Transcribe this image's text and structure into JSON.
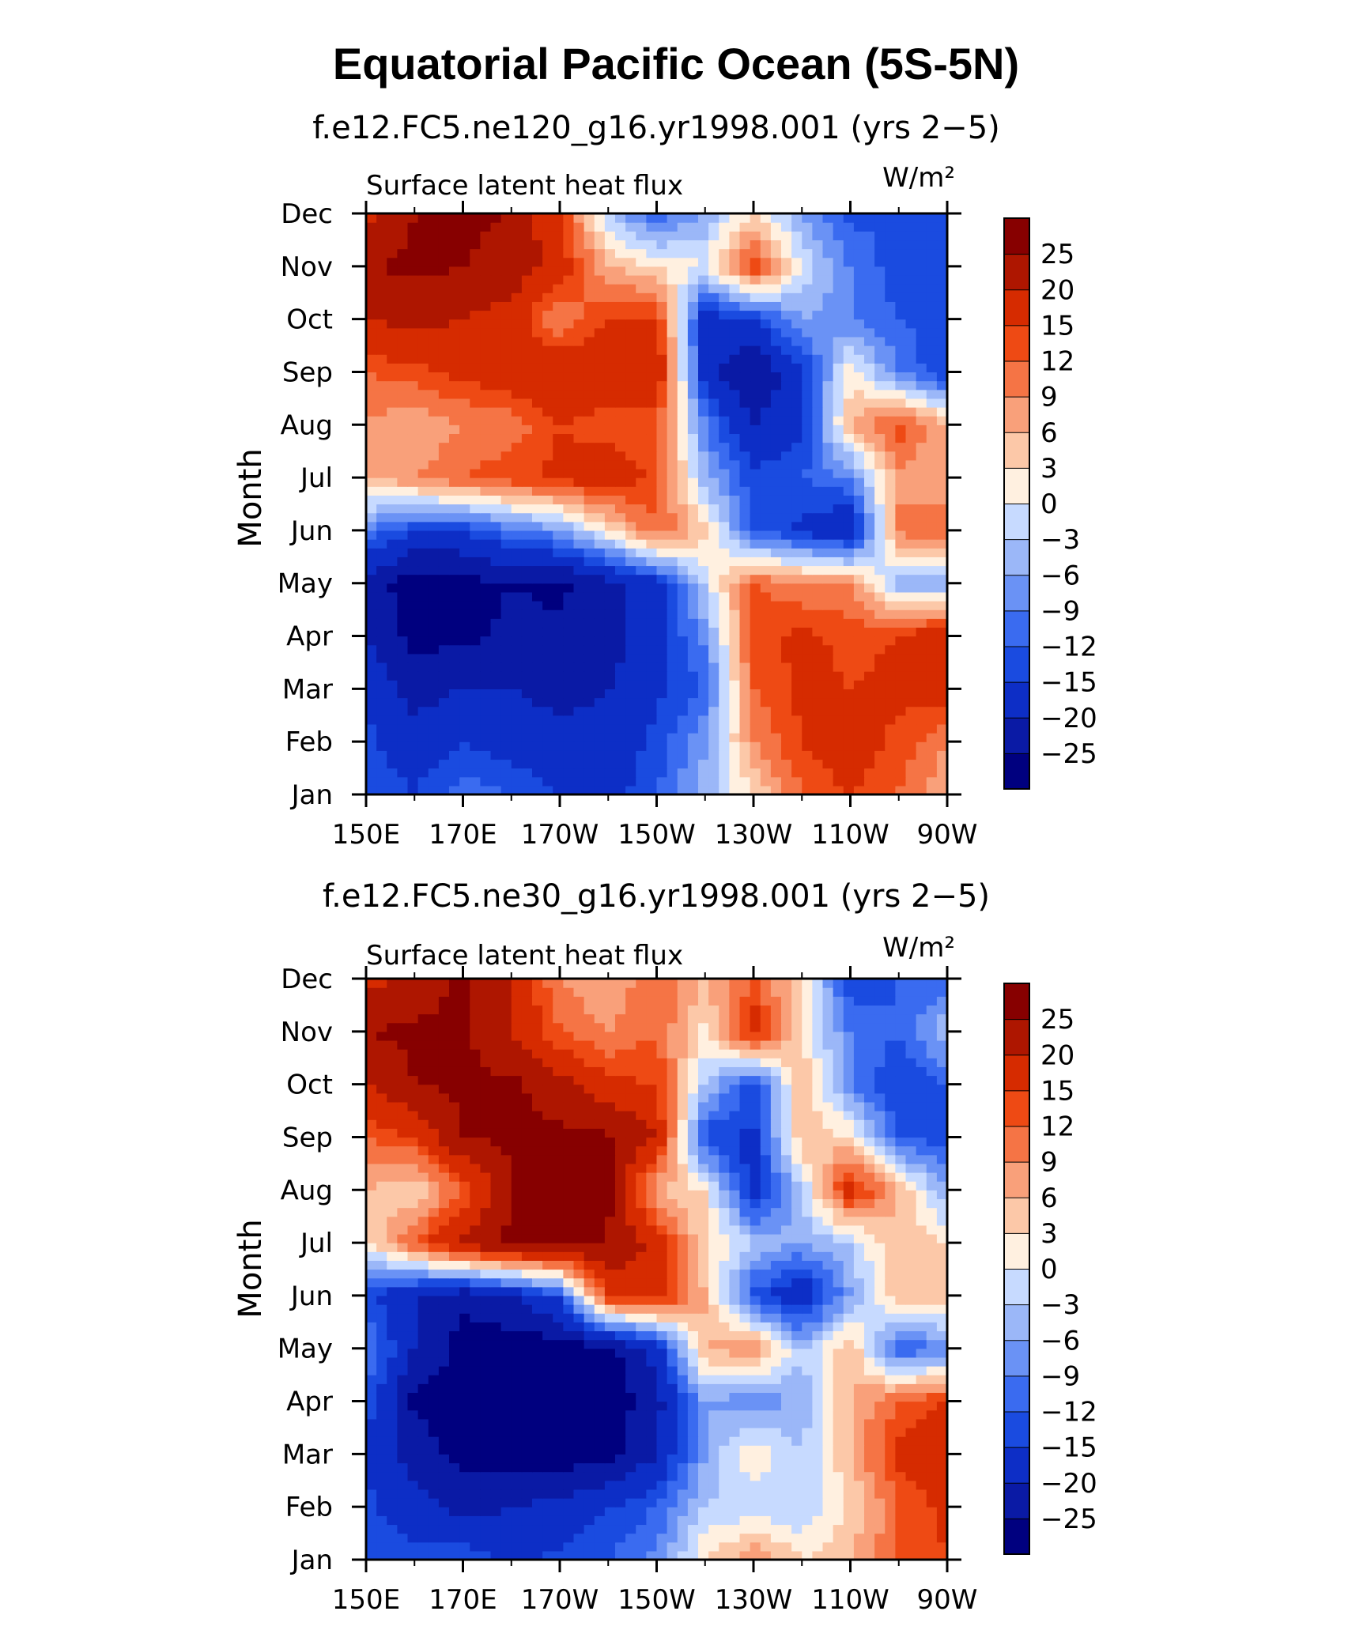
{
  "figure": {
    "title": "Equatorial Pacific Ocean (5S-5N)"
  },
  "chart_data": [
    {
      "type": "heatmap",
      "title": "f.e12.FC5.ne120_g16.yr1998.001 (yrs 2−5)",
      "left_label": "Surface latent heat flux",
      "right_label": "W/m²",
      "ylabel": "Month",
      "xlabel": "",
      "x_ticks": [
        "150E",
        "170E",
        "170W",
        "150W",
        "130W",
        "110W",
        "90W"
      ],
      "y_ticks": [
        "Jan",
        "Feb",
        "Mar",
        "Apr",
        "May",
        "Jun",
        "Jul",
        "Aug",
        "Sep",
        "Oct",
        "Nov",
        "Dec"
      ],
      "xlim": [
        "150E",
        "90W"
      ],
      "ylim": [
        "Jan",
        "Dec"
      ],
      "colorbar_levels": [
        "25",
        "20",
        "15",
        "12",
        "9",
        "6",
        "3",
        "0",
        "−3",
        "−6",
        "−9",
        "−12",
        "−15",
        "−20",
        "−25"
      ],
      "grid_x": [
        "150E",
        "160E",
        "170E",
        "180",
        "170W",
        "160W",
        "150W",
        "140W",
        "130W",
        "120W",
        "110W",
        "100W",
        "90W"
      ],
      "values": [
        [
          -12,
          -15,
          -10,
          -12,
          -15,
          -17,
          -12,
          -5,
          3,
          12,
          15,
          12,
          6
        ],
        [
          -14,
          -18,
          -15,
          -17,
          -18,
          -18,
          -14,
          -6,
          9,
          15,
          18,
          14,
          9
        ],
        [
          -16,
          -22,
          -20,
          -20,
          -22,
          -20,
          -16,
          -12,
          12,
          16,
          15,
          16,
          18
        ],
        [
          -20,
          -27,
          -26,
          -24,
          -24,
          -22,
          -17,
          -8,
          14,
          16,
          14,
          15,
          20
        ],
        [
          -22,
          -28,
          -27,
          -25,
          -26,
          -22,
          -17,
          -2,
          12,
          9,
          9,
          -5,
          -6
        ],
        [
          -9,
          -15,
          -15,
          -10,
          -7,
          2,
          12,
          4,
          -12,
          -16,
          -20,
          10,
          12
        ],
        [
          6,
          9,
          12,
          14,
          16,
          18,
          14,
          -5,
          -14,
          -12,
          -9,
          8,
          6
        ],
        [
          9,
          6,
          9,
          10,
          15,
          13,
          13,
          -9,
          -20,
          -16,
          6,
          14,
          6
        ],
        [
          12,
          14,
          16,
          18,
          20,
          18,
          20,
          -18,
          -25,
          -16,
          2,
          -9,
          -15
        ],
        [
          20,
          22,
          20,
          18,
          9,
          15,
          16,
          -18,
          -15,
          -6,
          -9,
          -12,
          -14
        ],
        [
          25,
          26,
          25,
          23,
          18,
          6,
          3,
          0,
          15,
          0,
          -9,
          -14,
          -15
        ],
        [
          18,
          25,
          26,
          25,
          15,
          -3,
          -12,
          -5,
          3,
          -6,
          -13,
          -12,
          -15
        ]
      ]
    },
    {
      "type": "heatmap",
      "title": "f.e12.FC5.ne30_g16.yr1998.001 (yrs 2−5)",
      "left_label": "Surface latent heat flux",
      "right_label": "W/m²",
      "ylabel": "Month",
      "xlabel": "",
      "x_ticks": [
        "150E",
        "170E",
        "170W",
        "150W",
        "130W",
        "110W",
        "90W"
      ],
      "y_ticks": [
        "Jan",
        "Feb",
        "Mar",
        "Apr",
        "May",
        "Jun",
        "Jul",
        "Aug",
        "Sep",
        "Oct",
        "Nov",
        "Dec"
      ],
      "xlim": [
        "150E",
        "90W"
      ],
      "ylim": [
        "Jan",
        "Dec"
      ],
      "colorbar_levels": [
        "25",
        "20",
        "15",
        "12",
        "9",
        "6",
        "3",
        "0",
        "−3",
        "−6",
        "−9",
        "−12",
        "−15",
        "−20",
        "−25"
      ],
      "grid_x": [
        "150E",
        "160E",
        "170E",
        "180",
        "170W",
        "160W",
        "150W",
        "140W",
        "130W",
        "120W",
        "110W",
        "100W",
        "90W"
      ],
      "values": [
        [
          -12,
          -14,
          -12,
          -16,
          -14,
          -12,
          -8,
          3,
          9,
          3,
          6,
          12,
          15
        ],
        [
          -14,
          -18,
          -22,
          -20,
          -18,
          -15,
          -12,
          -3,
          -2,
          -3,
          3,
          12,
          16
        ],
        [
          -16,
          -22,
          -27,
          -27,
          -28,
          -27,
          -20,
          -6,
          3,
          -3,
          6,
          16,
          20
        ],
        [
          -13,
          -26,
          -28,
          -28,
          -28,
          -28,
          -22,
          -6,
          -9,
          -5,
          6,
          12,
          15
        ],
        [
          -8,
          -20,
          -27,
          -28,
          -28,
          -27,
          -18,
          6,
          9,
          -3,
          6,
          -12,
          -9
        ],
        [
          -14,
          -20,
          -24,
          -20,
          -14,
          16,
          18,
          6,
          -13,
          -20,
          -6,
          6,
          6
        ],
        [
          2,
          12,
          22,
          26,
          27,
          25,
          18,
          3,
          -3,
          -6,
          -3,
          6,
          3
        ],
        [
          6,
          3,
          12,
          25,
          27,
          26,
          6,
          3,
          -18,
          -3,
          18,
          6,
          -6
        ],
        [
          12,
          15,
          25,
          26,
          26,
          26,
          20,
          -14,
          -16,
          6,
          3,
          -12,
          -14
        ],
        [
          20,
          25,
          26,
          26,
          22,
          16,
          15,
          -3,
          -14,
          6,
          -9,
          -15,
          -12
        ],
        [
          25,
          26,
          26,
          20,
          12,
          9,
          12,
          2,
          18,
          3,
          -9,
          -12,
          -3
        ],
        [
          18,
          22,
          26,
          20,
          9,
          6,
          12,
          6,
          12,
          3,
          -15,
          -12,
          -12
        ]
      ]
    }
  ],
  "colors": {
    "levels": [
      "#00007f",
      "#0a1aa5",
      "#0d2ec6",
      "#1a4be0",
      "#3a6bf0",
      "#6a92f5",
      "#9bb7f8",
      "#c7daff",
      "#fff0e0",
      "#fcc8a8",
      "#f9a07a",
      "#f57445",
      "#ee4a14",
      "#d62b00",
      "#ae1600",
      "#870000"
    ],
    "thresholds": [
      -25,
      -20,
      -15,
      -12,
      -9,
      -6,
      -3,
      0,
      3,
      6,
      9,
      12,
      15,
      20,
      25
    ]
  }
}
